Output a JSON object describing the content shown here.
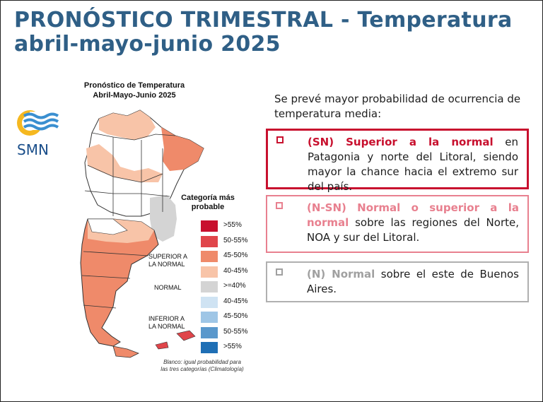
{
  "title": {
    "line1": "PRONÓSTICO TRIMESTRAL - Temperatura",
    "line2": "abril-mayo-junio 2025"
  },
  "map": {
    "title_line1": "Pronóstico de Temperatura",
    "title_line2": "Abril-Mayo-Junio 2025",
    "logo_text": "SMN",
    "legend_title_line1": "Categoría más",
    "legend_title_line2": "probable",
    "legend": [
      {
        "label": ">55%",
        "color": "#c8102e"
      },
      {
        "label": "50-55%",
        "color": "#e0454a"
      },
      {
        "label": "45-50%",
        "color": "#ef8a6a"
      },
      {
        "label": "40-45%",
        "color": "#f8c4a8"
      },
      {
        "label": ">=40%",
        "color": "#d4d4d4"
      },
      {
        "label": "40-45%",
        "color": "#cfe3f3"
      },
      {
        "label": "45-50%",
        "color": "#9fc6e6"
      },
      {
        "label": "50-55%",
        "color": "#5a98cc"
      },
      {
        "label": ">55%",
        "color": "#1f6fb5"
      }
    ],
    "cat_superior_line1": "SUPERIOR A",
    "cat_superior_line2": "LA NORMAL",
    "cat_normal": "NORMAL",
    "cat_inferior_line1": "INFERIOR A",
    "cat_inferior_line2": "LA NORMAL",
    "footnote_line1": "Blanco: igual probabilidad para",
    "footnote_line2": "las tres categorías (Climatología)"
  },
  "intro": "Se prevé mayor probabilidad de ocurrencia de temperatura media:",
  "boxes": [
    {
      "highlight": "(SN) Superior a la normal",
      "rest": " en Patagonia y norte del Litoral, siendo mayor la chance hacia el extremo sur del país."
    },
    {
      "highlight": "(N-SN) Normal o superior a la normal",
      "rest": " sobre las regiones del Norte, NOA y sur del Litoral."
    },
    {
      "highlight": "(N) Normal",
      "rest": " sobre el este de Buenos Aires."
    }
  ]
}
